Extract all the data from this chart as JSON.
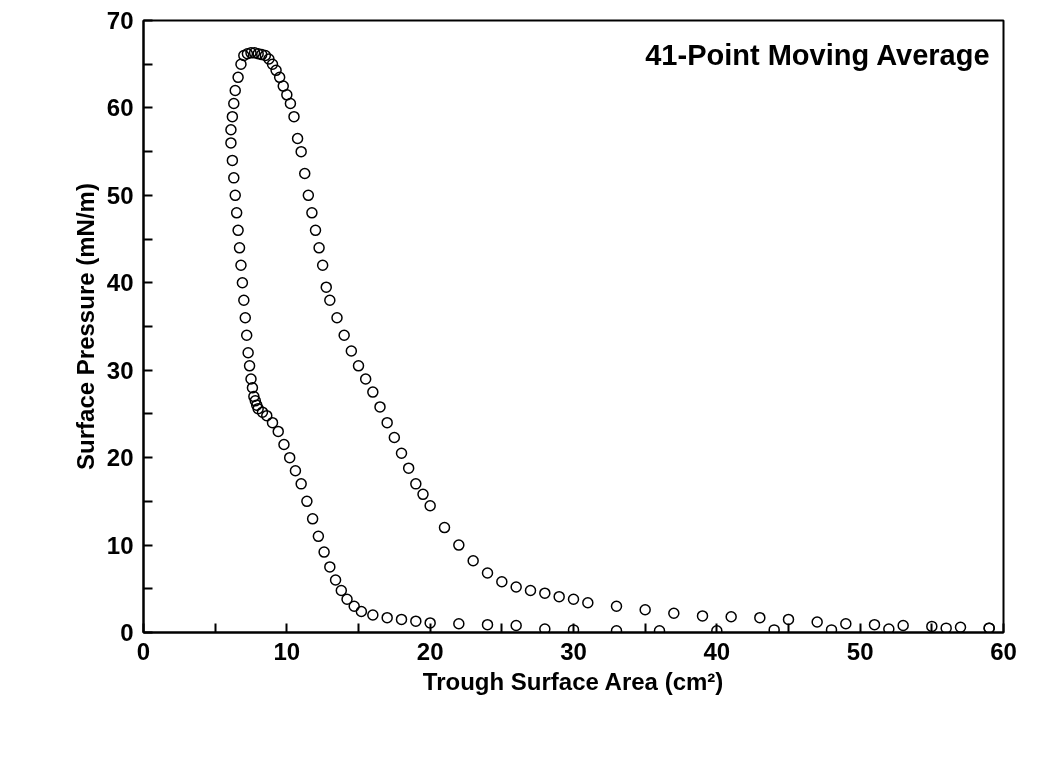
{
  "chart_data": {
    "type": "scatter",
    "xlabel": "Trough Surface Area (cm²)",
    "ylabel": "Surface Pressure (mN/m)",
    "annotations": [
      "41-Point Moving Average"
    ],
    "marker": "circle",
    "grid": false,
    "xlim": [
      0,
      60
    ],
    "ylim": [
      0,
      70
    ],
    "xticks": [
      0,
      {
        "value": 5,
        "label": null
      },
      10,
      {
        "value": 15,
        "label": null
      },
      20,
      {
        "value": 25,
        "label": null
      },
      30,
      {
        "value": 35,
        "label": null
      },
      40,
      {
        "value": 45,
        "label": null
      },
      50,
      {
        "value": 55,
        "label": null
      },
      60
    ],
    "yticks": [
      0,
      {
        "value": 5,
        "label": null
      },
      10,
      {
        "value": 15,
        "label": null
      },
      20,
      {
        "value": 25,
        "label": null
      },
      30,
      {
        "value": 35,
        "label": null
      },
      40,
      {
        "value": 45,
        "label": null
      },
      50,
      {
        "value": 55,
        "label": null
      },
      60,
      {
        "value": 65,
        "label": null
      },
      70
    ],
    "series": [
      {
        "color": "#000000",
        "x": [
          59,
          57,
          55,
          53,
          51,
          49,
          47,
          45,
          43,
          41,
          39,
          37,
          35,
          33,
          31,
          30,
          29,
          28,
          27,
          26,
          25,
          24,
          23,
          22,
          21,
          20,
          19.5,
          19,
          18.5,
          18,
          17.5,
          17,
          16.5,
          16,
          15.5,
          15,
          14.5,
          14,
          13.5,
          13,
          12.75,
          12.5,
          12.25,
          12,
          11.75,
          11.5,
          11.25,
          11,
          10.75,
          10.5,
          10.25,
          10,
          9.75,
          9.5,
          9.25,
          9,
          8.75,
          8.5,
          8.25,
          8,
          7.75,
          7.5,
          7.25,
          7,
          6.8,
          6.6,
          6.4,
          6.3,
          6.2,
          6.1,
          6.1,
          6.2,
          6.3,
          6.4,
          6.5,
          6.6,
          6.7,
          6.8,
          6.9,
          7.0,
          7.1,
          7.2,
          7.3,
          7.4,
          7.5,
          7.6,
          7.7,
          7.8,
          7.9,
          8.0,
          8.3,
          8.6,
          9,
          9.4,
          9.8,
          10.2,
          10.6,
          11,
          11.4,
          11.8,
          12.2,
          12.6,
          13,
          13.4,
          13.8,
          14.2,
          14.7,
          15.2,
          16,
          17,
          18,
          19,
          20,
          22,
          24,
          26,
          28,
          30,
          33,
          36,
          40,
          44,
          48,
          52,
          56,
          59
        ],
        "values": [
          0.5,
          0.6,
          0.7,
          0.8,
          0.9,
          1.0,
          1.2,
          1.5,
          1.7,
          1.8,
          1.9,
          2.2,
          2.6,
          3.0,
          3.4,
          3.8,
          4.1,
          4.5,
          4.8,
          5.2,
          5.8,
          6.8,
          8.2,
          10.0,
          12.0,
          14.5,
          15.8,
          17.0,
          18.8,
          20.5,
          22.3,
          24.0,
          25.8,
          27.5,
          29.0,
          30.5,
          32.2,
          34.0,
          36.0,
          38.0,
          39.5,
          42.0,
          44.0,
          46.0,
          48.0,
          50.0,
          52.5,
          55.0,
          56.5,
          59.0,
          60.5,
          61.5,
          62.5,
          63.5,
          64.3,
          65.0,
          65.6,
          66.0,
          66.1,
          66.2,
          66.3,
          66.3,
          66.2,
          66.0,
          65.0,
          63.5,
          62.0,
          60.5,
          59.0,
          57.5,
          56.0,
          54.0,
          52.0,
          50.0,
          48.0,
          46.0,
          44.0,
          42.0,
          40.0,
          38.0,
          36.0,
          34.0,
          32.0,
          30.5,
          29.0,
          28.0,
          27.0,
          26.5,
          26.0,
          25.6,
          25.2,
          24.8,
          24.0,
          23.0,
          21.5,
          20.0,
          18.5,
          17.0,
          15.0,
          13.0,
          11.0,
          9.2,
          7.5,
          6.0,
          4.8,
          3.8,
          3.0,
          2.4,
          2.0,
          1.7,
          1.5,
          1.3,
          1.1,
          1.0,
          0.9,
          0.8,
          0.4,
          0.3,
          0.2,
          0.2,
          0.2,
          0.3,
          0.3,
          0.4,
          0.5,
          0.5
        ]
      }
    ]
  }
}
